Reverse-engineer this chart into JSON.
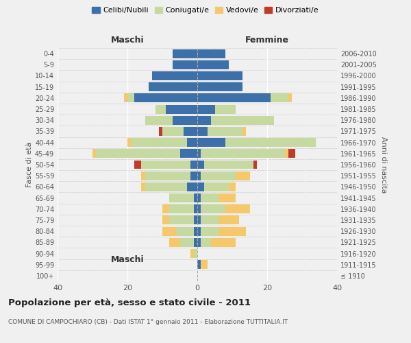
{
  "age_groups": [
    "100+",
    "95-99",
    "90-94",
    "85-89",
    "80-84",
    "75-79",
    "70-74",
    "65-69",
    "60-64",
    "55-59",
    "50-54",
    "45-49",
    "40-44",
    "35-39",
    "30-34",
    "25-29",
    "20-24",
    "15-19",
    "10-14",
    "5-9",
    "0-4"
  ],
  "birth_years": [
    "≤ 1910",
    "1911-1915",
    "1916-1920",
    "1921-1925",
    "1926-1930",
    "1931-1935",
    "1936-1940",
    "1941-1945",
    "1946-1950",
    "1951-1955",
    "1956-1960",
    "1961-1965",
    "1966-1970",
    "1971-1975",
    "1976-1980",
    "1981-1985",
    "1986-1990",
    "1991-1995",
    "1996-2000",
    "2001-2005",
    "2006-2010"
  ],
  "male": {
    "celibi": [
      0,
      0,
      0,
      1,
      1,
      1,
      1,
      1,
      3,
      2,
      2,
      5,
      3,
      4,
      7,
      9,
      18,
      14,
      13,
      7,
      7
    ],
    "coniugati": [
      0,
      0,
      1,
      4,
      5,
      7,
      7,
      7,
      12,
      13,
      14,
      24,
      16,
      6,
      8,
      3,
      2,
      0,
      0,
      0,
      0
    ],
    "vedovi": [
      0,
      0,
      1,
      3,
      4,
      2,
      2,
      0,
      1,
      1,
      0,
      1,
      1,
      0,
      0,
      0,
      1,
      0,
      0,
      0,
      0
    ],
    "divorziati": [
      0,
      0,
      0,
      0,
      0,
      0,
      0,
      0,
      0,
      0,
      2,
      0,
      0,
      1,
      0,
      0,
      0,
      0,
      0,
      0,
      0
    ]
  },
  "female": {
    "nubili": [
      0,
      1,
      0,
      1,
      1,
      1,
      1,
      1,
      2,
      1,
      2,
      1,
      8,
      3,
      4,
      5,
      21,
      13,
      13,
      9,
      8
    ],
    "coniugate": [
      0,
      0,
      0,
      3,
      5,
      5,
      7,
      5,
      7,
      10,
      14,
      24,
      26,
      10,
      18,
      6,
      5,
      0,
      0,
      0,
      0
    ],
    "vedove": [
      0,
      2,
      0,
      7,
      8,
      6,
      7,
      5,
      2,
      4,
      0,
      1,
      0,
      1,
      0,
      0,
      1,
      0,
      0,
      0,
      0
    ],
    "divorziate": [
      0,
      0,
      0,
      0,
      0,
      0,
      0,
      0,
      0,
      0,
      1,
      2,
      0,
      0,
      0,
      0,
      0,
      0,
      0,
      0,
      0
    ]
  },
  "color_celibi": "#3d6fa8",
  "color_coniugati": "#c5d9a0",
  "color_vedovi": "#f5c96b",
  "color_divorziati": "#c0392b",
  "xlim": 40,
  "title": "Popolazione per età, sesso e stato civile - 2011",
  "subtitle": "COMUNE DI CAMPOCHIARO (CB) - Dati ISTAT 1° gennaio 2011 - Elaborazione TUTTITALIA.IT",
  "ylabel_left": "Fasce di età",
  "ylabel_right": "Anni di nascita",
  "xlabel_left": "Maschi",
  "xlabel_right": "Femmine",
  "bg_color": "#f0f0f0",
  "legend_labels": [
    "Celibi/Nubili",
    "Coniugati/e",
    "Vedovi/e",
    "Divorziati/e"
  ]
}
